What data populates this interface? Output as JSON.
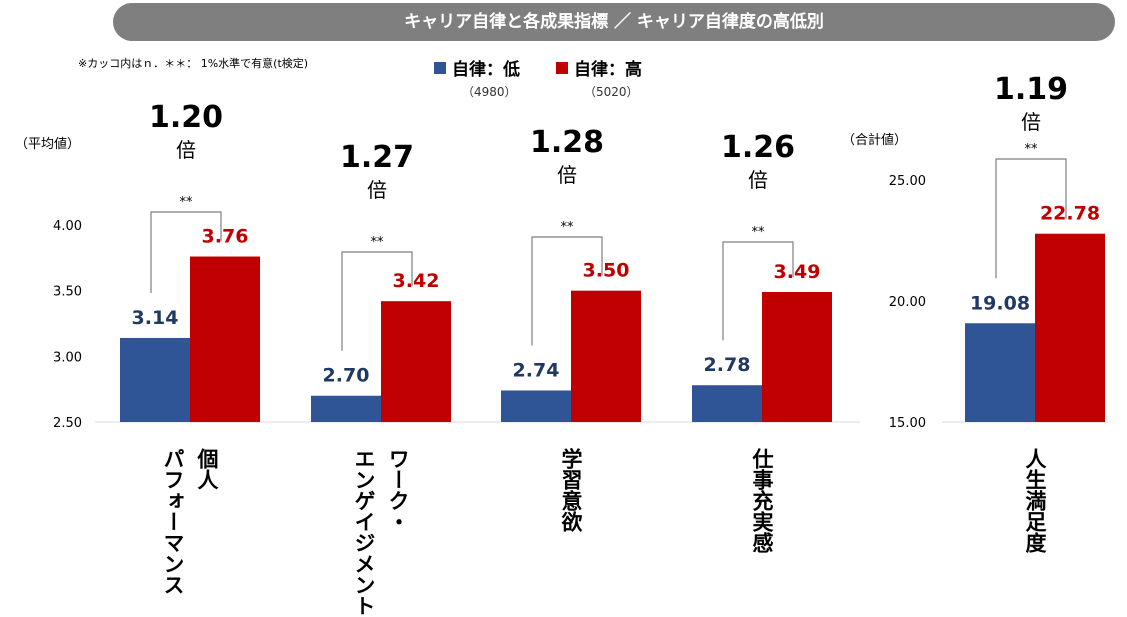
{
  "header": {
    "title": "キャリア自律と各成果指標 ／ キャリア自律度の高低別",
    "note": "※カッコ内はｎ．＊＊： 1%水準で有意(t検定)"
  },
  "legend": [
    {
      "label": "自律：低",
      "n": "（4980）",
      "color": "#2f5597"
    },
    {
      "label": "自律：高",
      "n": "（5020）",
      "color": "#c00000"
    }
  ],
  "colors": {
    "low": "#2f5597",
    "high": "#c00000",
    "low_label": "#1f3864",
    "high_label": "#c00000"
  },
  "chart_data": [
    {
      "type": "bar",
      "ylabel": "（平均値）",
      "ylim": [
        2.5,
        4.0
      ],
      "yticks": [
        "2.50",
        "3.00",
        "3.50",
        "4.00"
      ],
      "categories": [
        "個人\nパフォーマンス",
        "ワーク・\nエンゲイジメント",
        "学習意欲",
        "仕事充実感"
      ],
      "series": [
        {
          "name": "自律：低",
          "values": [
            3.14,
            2.7,
            2.74,
            2.78
          ]
        },
        {
          "name": "自律：高",
          "values": [
            3.76,
            3.42,
            3.5,
            3.49
          ]
        }
      ],
      "ratios": [
        "1.20",
        "1.27",
        "1.28",
        "1.26"
      ],
      "ratio_unit": "倍",
      "significance": [
        "**",
        "**",
        "**",
        "**"
      ]
    },
    {
      "type": "bar",
      "ylabel": "（合計値）",
      "ylim": [
        15.0,
        25.0
      ],
      "yticks": [
        "15.00",
        "20.00",
        "25.00"
      ],
      "categories": [
        "人生満足度"
      ],
      "series": [
        {
          "name": "自律：低",
          "values": [
            19.08
          ]
        },
        {
          "name": "自律：高",
          "values": [
            22.78
          ]
        }
      ],
      "ratios": [
        "1.19"
      ],
      "ratio_unit": "倍",
      "significance": [
        "**"
      ]
    }
  ]
}
